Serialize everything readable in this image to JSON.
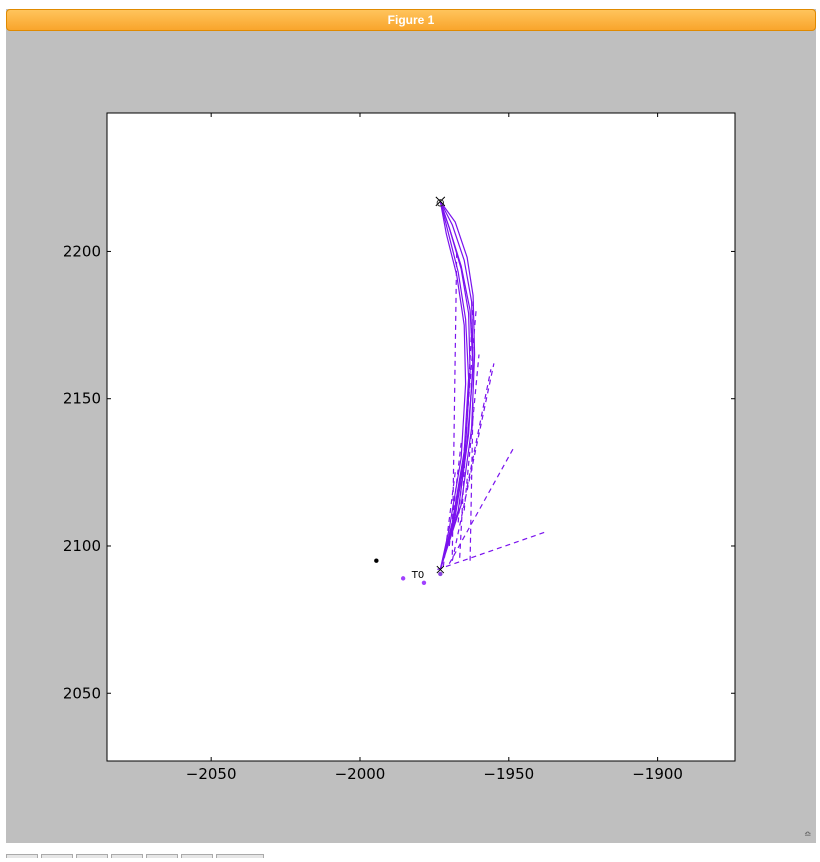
{
  "window": {
    "title": "Figure 1"
  },
  "colors": {
    "frame": "#bfbfbf",
    "titlebar": "#f9a52c",
    "purple": "#7a12ee",
    "purple_light": "#a040ff"
  },
  "chart_data": {
    "type": "line",
    "title": "",
    "xlabel": "",
    "ylabel": "",
    "xlim": [
      -2085,
      -1874
    ],
    "ylim": [
      2027,
      2247
    ],
    "xticks": [
      -2050,
      -2000,
      -1950,
      -1900
    ],
    "yticks": [
      2050,
      2100,
      2150,
      2200
    ],
    "xtick_labels": [
      "−2050",
      "−2000",
      "−1950",
      "−1900"
    ],
    "ytick_labels": [
      "2050",
      "2100",
      "2150",
      "2200"
    ],
    "grid": false,
    "annotations": [
      {
        "text": "T0",
        "x": -1978.5,
        "y": 2090.5
      }
    ],
    "markers": {
      "start_x": {
        "x": -1973,
        "y": 2092
      },
      "end_x": {
        "x": -1973,
        "y": 2217
      },
      "end_circle": {
        "x": -1973,
        "y": 2216.5
      }
    },
    "points": [
      {
        "x": -1994.5,
        "y": 2095,
        "color": "#000000"
      },
      {
        "x": -1985.5,
        "y": 2089,
        "color": "#a040ff"
      },
      {
        "x": -1978.5,
        "y": 2087.5,
        "color": "#a040ff"
      },
      {
        "x": -1973,
        "y": 2090.5,
        "color": "#8844dd"
      }
    ],
    "trajectories": [
      {
        "x": [
          -1973,
          -1968,
          -1964,
          -1962,
          -1963,
          -1966,
          -1970,
          -1973
        ],
        "y": [
          2092,
          2110,
          2135,
          2160,
          2180,
          2195,
          2208,
          2217
        ]
      },
      {
        "x": [
          -1973,
          -1969,
          -1965,
          -1963.5,
          -1964.5,
          -1967,
          -1970.5,
          -1973
        ],
        "y": [
          2092,
          2108,
          2132,
          2157,
          2177,
          2193,
          2207,
          2217
        ]
      },
      {
        "x": [
          -1973,
          -1967,
          -1963.5,
          -1962,
          -1962.5,
          -1965,
          -1969,
          -1973
        ],
        "y": [
          2092,
          2112,
          2138,
          2163,
          2183,
          2197,
          2209,
          2217
        ]
      },
      {
        "x": [
          -1973,
          -1970,
          -1966,
          -1964.5,
          -1965,
          -1967.5,
          -1971,
          -1973
        ],
        "y": [
          2092,
          2106,
          2130,
          2155,
          2175,
          2192,
          2206,
          2217
        ]
      },
      {
        "x": [
          -1973,
          -1966,
          -1962.5,
          -1961.5,
          -1962,
          -1964,
          -1968,
          -1973
        ],
        "y": [
          2092,
          2114,
          2140,
          2165,
          2185,
          2198,
          2210,
          2217
        ]
      },
      {
        "x": [
          -1973,
          -1968.5,
          -1964.5,
          -1963,
          -1963.5,
          -1966,
          -1970,
          -1973
        ],
        "y": [
          2092,
          2109,
          2134,
          2159,
          2179,
          2194,
          2208,
          2217
        ]
      }
    ],
    "dashed_segments": [
      {
        "x": [
          -1974,
          -1937
        ],
        "y": [
          2092,
          2105
        ]
      },
      {
        "x": [
          -1970,
          -1948
        ],
        "y": [
          2094,
          2134
        ]
      },
      {
        "x": [
          -1969,
          -1955
        ],
        "y": [
          2095,
          2162
        ]
      },
      {
        "x": [
          -1966.5,
          -1962
        ],
        "y": [
          2096,
          2183
        ]
      },
      {
        "x": [
          -1969,
          -1967.5
        ],
        "y": [
          2097,
          2200
        ]
      },
      {
        "x": [
          -1967,
          -1961
        ],
        "y": [
          2108,
          2180
        ]
      },
      {
        "x": [
          -1965,
          -1960
        ],
        "y": [
          2112,
          2165
        ]
      },
      {
        "x": [
          -1963,
          -1962
        ],
        "y": [
          2095,
          2150
        ]
      },
      {
        "x": [
          -1970,
          -1966
        ],
        "y": [
          2100,
          2135
        ]
      },
      {
        "x": [
          -1964,
          -1956
        ],
        "y": [
          2120,
          2160
        ]
      },
      {
        "x": [
          -1972,
          -1968
        ],
        "y": [
          2093,
          2125
        ]
      }
    ]
  }
}
